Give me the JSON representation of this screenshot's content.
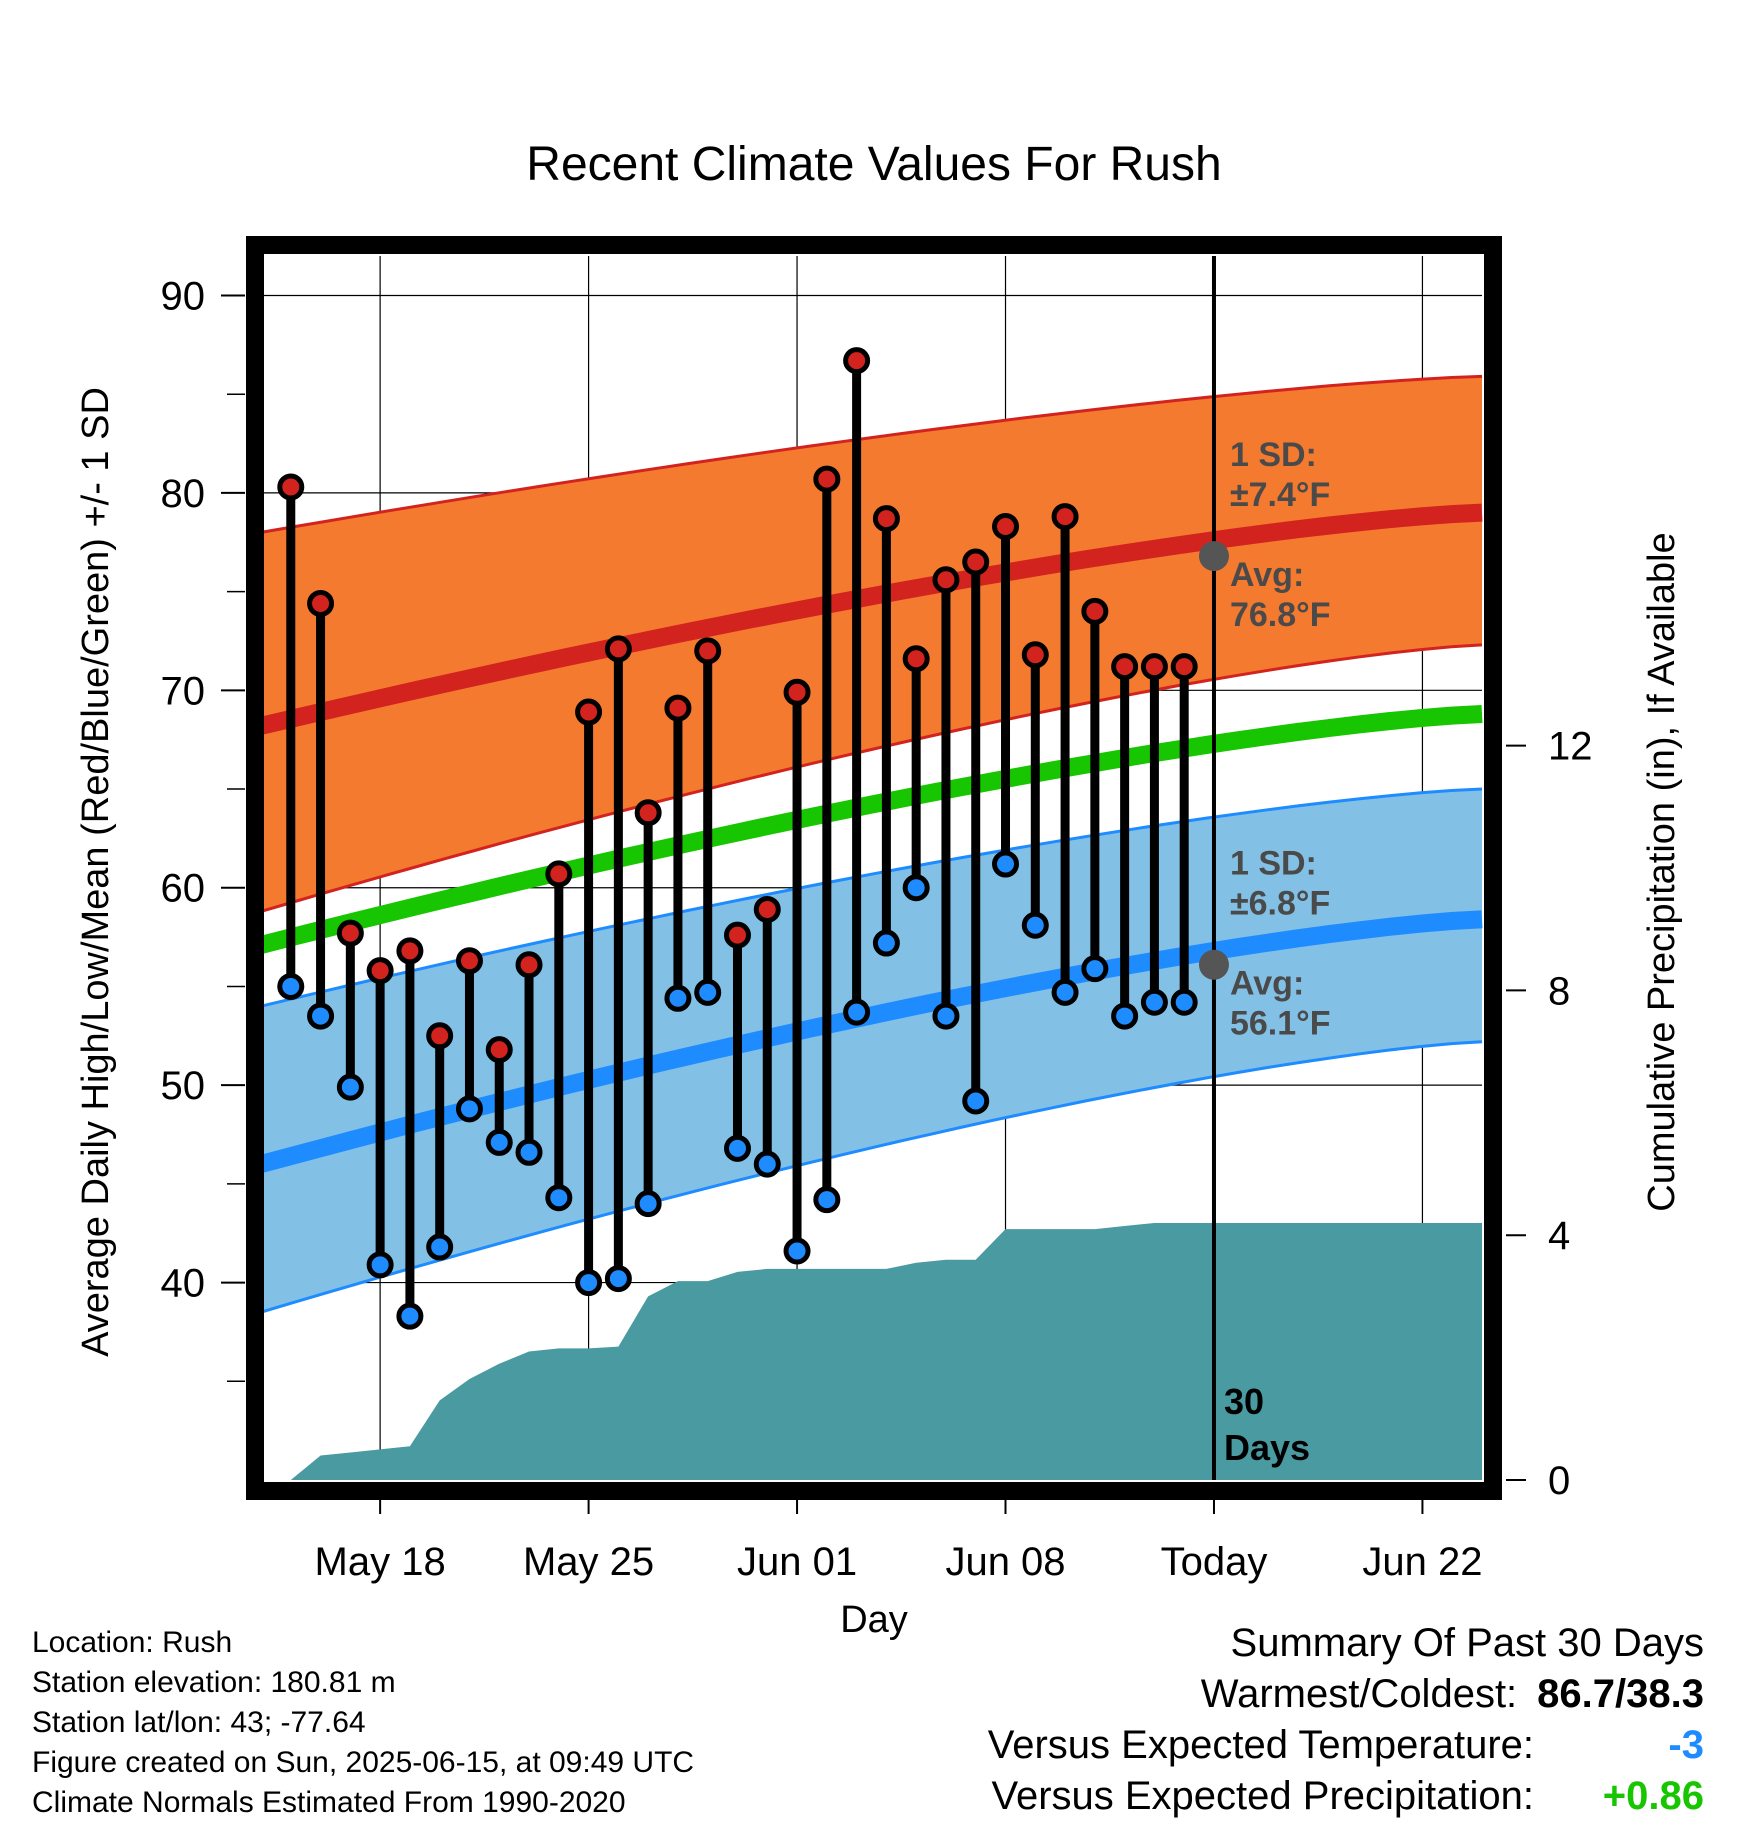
{
  "chart_data": {
    "type": "line",
    "title": "Recent Climate Values For Rush",
    "xlabel": "Day",
    "ylabel_left": "Average Daily High/Low/Mean (Red/Blue/Green) +/- 1 SD",
    "ylabel_right": "Cumulative Precipitation (in), If Available",
    "ylim_left": [
      30,
      92
    ],
    "ylim_right": [
      0,
      20
    ],
    "y_ticks_left": [
      "40",
      "50",
      "60",
      "70",
      "80",
      "90"
    ],
    "y_ticks_right": [
      "0",
      "4",
      "8",
      "12"
    ],
    "x_ticks": [
      "May 18",
      "May 25",
      "Jun 01",
      "Jun 08",
      "Today",
      "Jun 22"
    ],
    "x_tick_dates": [
      "2025-05-18",
      "2025-05-25",
      "2025-06-01",
      "2025-06-08",
      "2025-06-15",
      "2025-06-22"
    ],
    "x_range": [
      "2025-05-14",
      "2025-06-24"
    ],
    "today": "2025-06-15",
    "today_label": "30 Days",
    "daily_dates": [
      "2025-05-15",
      "2025-05-16",
      "2025-05-17",
      "2025-05-18",
      "2025-05-19",
      "2025-05-20",
      "2025-05-21",
      "2025-05-22",
      "2025-05-23",
      "2025-05-24",
      "2025-05-25",
      "2025-05-26",
      "2025-05-27",
      "2025-05-28",
      "2025-05-29",
      "2025-05-30",
      "2025-05-31",
      "2025-06-01",
      "2025-06-02",
      "2025-06-03",
      "2025-06-04",
      "2025-06-05",
      "2025-06-06",
      "2025-06-07",
      "2025-06-08",
      "2025-06-09",
      "2025-06-10",
      "2025-06-11",
      "2025-06-12",
      "2025-06-13",
      "2025-06-14"
    ],
    "observed_high": [
      80.3,
      74.4,
      57.7,
      55.8,
      56.8,
      52.5,
      56.3,
      51.8,
      56.1,
      60.7,
      68.9,
      72.1,
      63.8,
      69.1,
      72.0,
      57.6,
      58.9,
      69.9,
      80.7,
      86.7,
      78.7,
      71.6,
      75.6,
      76.5,
      78.3,
      71.8,
      78.8,
      74.0,
      71.2,
      71.2,
      71.2
    ],
    "observed_low": [
      55.0,
      53.5,
      49.9,
      40.9,
      38.3,
      41.8,
      48.8,
      47.1,
      46.6,
      44.3,
      40.0,
      40.2,
      44.0,
      54.4,
      54.7,
      46.8,
      46.0,
      41.6,
      44.2,
      53.7,
      57.2,
      60.0,
      53.5,
      49.2,
      61.2,
      58.1,
      54.7,
      55.9,
      53.5,
      54.2,
      54.2
    ],
    "normal_dates": [
      "2025-05-14",
      "2025-06-24"
    ],
    "normal_high": [
      68.2,
      79.0
    ],
    "normal_high_sd_lower": [
      58.8,
      72.3
    ],
    "normal_high_sd_upper": [
      78.0,
      85.9
    ],
    "normal_low": [
      46.0,
      58.4
    ],
    "normal_low_sd_lower": [
      38.5,
      52.2
    ],
    "normal_low_sd_upper": [
      54.0,
      65.0
    ],
    "normal_mean": [
      57.1,
      68.8
    ],
    "precip_cumulative": [
      0.0,
      0.4,
      0.45,
      0.5,
      0.55,
      1.3,
      1.65,
      1.9,
      2.1,
      2.15,
      2.15,
      2.18,
      3.0,
      3.25,
      3.25,
      3.4,
      3.45,
      3.45,
      3.45,
      3.45,
      3.45,
      3.55,
      3.6,
      3.6,
      4.1,
      4.1,
      4.1,
      4.1,
      4.15,
      4.2,
      4.2
    ],
    "precip_after_today": 4.2,
    "annotations": {
      "high_sd_label": "1 SD:",
      "high_sd_value": "±7.4°F",
      "high_avg_label": "Avg:",
      "high_avg_value": "76.8°F",
      "high_avg_point": 76.8,
      "low_sd_label": "1 SD:",
      "low_sd_value": "±6.8°F",
      "low_avg_label": "Avg:",
      "low_avg_value": "56.1°F",
      "low_avg_point": 56.1
    },
    "colors": {
      "high_band": "#f47a2f",
      "high_line": "#d3231f",
      "low_band": "#82c0e6",
      "low_line": "#1e8cff",
      "mean_line": "#17c500",
      "precip_fill": "#4a9aa2",
      "high_point": "#d3231f",
      "low_point": "#1e8cff",
      "annotation_text": "#4a4a4a"
    }
  },
  "footer": {
    "location": "Location: Rush",
    "elevation": "Station elevation: 180.81 m",
    "latlon": "Station lat/lon: 43; -77.64",
    "created": "Figure created on Sun, 2025-06-15, at 09:49 UTC",
    "normals": "Climate Normals Estimated From 1990-2020"
  },
  "summary": {
    "heading": "Summary Of Past 30 Days",
    "warmest_label": "Warmest/Coldest:",
    "warmest_value": "86.7/38.3",
    "temp_label": "Versus Expected Temperature:",
    "temp_value": "-3",
    "temp_color": "#1e8cff",
    "precip_label": "Versus Expected Precipitation:",
    "precip_value": "+0.86",
    "precip_color": "#17c500"
  }
}
